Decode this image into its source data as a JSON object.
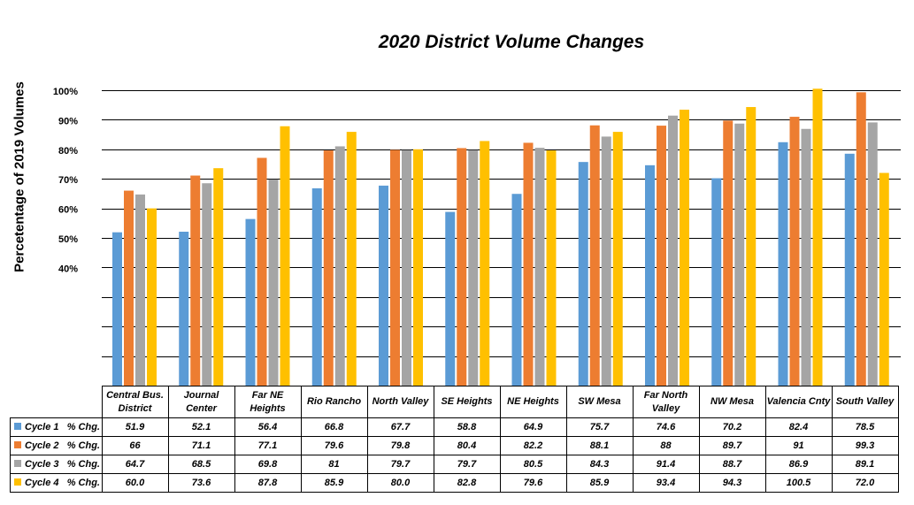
{
  "chart_data": {
    "type": "bar",
    "title": "2020 District Volume Changes",
    "xlabel": "",
    "ylabel": "Percetentage of 2019 Volumes",
    "ylim": [
      0,
      100
    ],
    "yticks": [
      "40%",
      "50%",
      "60%",
      "70%",
      "80%",
      "90%",
      "100%"
    ],
    "ytick_values": [
      40,
      50,
      60,
      70,
      80,
      90,
      100
    ],
    "grid": true,
    "legend": "table-below",
    "categories": [
      "Central Bus. District",
      "Journal Center",
      "Far NE Heights",
      "Rio Rancho",
      "North Valley",
      "SE Heights",
      "NE Heights",
      "SW Mesa",
      "Far North Valley",
      "NW Mesa",
      "Valencia Cnty",
      "South Valley"
    ],
    "series": [
      {
        "name": "Cycle 1   % Chg.",
        "color": "#5B9BD5",
        "values": [
          51.9,
          52.1,
          56.4,
          66.8,
          67.7,
          58.8,
          64.9,
          75.7,
          74.6,
          70.2,
          82.4,
          78.5
        ],
        "labels": [
          "51.9",
          "52.1",
          "56.4",
          "66.8",
          "67.7",
          "58.8",
          "64.9",
          "75.7",
          "74.6",
          "70.2",
          "82.4",
          "78.5"
        ]
      },
      {
        "name": "Cycle 2   % Chg.",
        "color": "#ED7D31",
        "values": [
          66,
          71.1,
          77.1,
          79.6,
          79.8,
          80.4,
          82.2,
          88.1,
          88,
          89.7,
          91,
          99.3
        ],
        "labels": [
          "66",
          "71.1",
          "77.1",
          "79.6",
          "79.8",
          "80.4",
          "82.2",
          "88.1",
          "88",
          "89.7",
          "91",
          "99.3"
        ]
      },
      {
        "name": "Cycle 3   % Chg.",
        "color": "#A5A5A5",
        "values": [
          64.7,
          68.5,
          69.8,
          81,
          79.7,
          79.7,
          80.5,
          84.3,
          91.4,
          88.7,
          86.9,
          89.1
        ],
        "labels": [
          "64.7",
          "68.5",
          "69.8",
          "81",
          "79.7",
          "79.7",
          "80.5",
          "84.3",
          "91.4",
          "88.7",
          "86.9",
          "89.1"
        ]
      },
      {
        "name": "Cycle 4   % Chg.",
        "color": "#FFC000",
        "values": [
          60.0,
          73.6,
          87.8,
          85.9,
          80.0,
          82.8,
          79.6,
          85.9,
          93.4,
          94.3,
          100.5,
          72.0
        ],
        "labels": [
          "60.0",
          "73.6",
          "87.8",
          "85.9",
          "80.0",
          "82.8",
          "79.6",
          "85.9",
          "93.4",
          "94.3",
          "100.5",
          "72.0"
        ]
      }
    ]
  }
}
